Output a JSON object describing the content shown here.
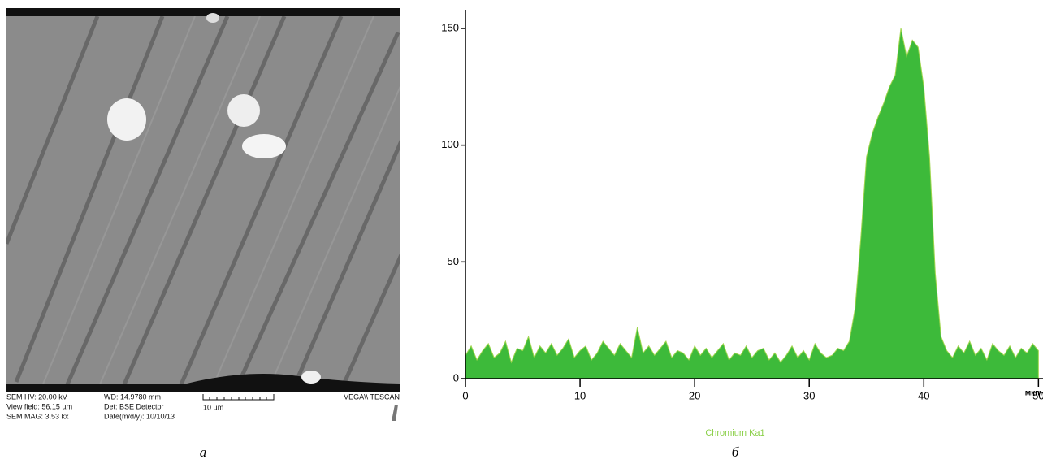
{
  "sem_image": {
    "hv": "SEM HV: 20.00 kV",
    "view_field": "View field: 56.15 µm",
    "mag": "SEM MAG: 3.53 kx",
    "wd": "WD: 14.9780 mm",
    "detector": "Det: BSE Detector",
    "date": "Date(m/d/y): 10/10/13",
    "scale_bar": "10 µm",
    "brand": "VEGA\\\\ TESCAN"
  },
  "captions": [
    "а",
    "б"
  ],
  "chart_data": {
    "type": "area",
    "x_unit_label": "мкm",
    "x": [
      0,
      0.5,
      1,
      1.5,
      2,
      2.5,
      3,
      3.5,
      4,
      4.5,
      5,
      5.5,
      6,
      6.5,
      7,
      7.5,
      8,
      8.5,
      9,
      9.5,
      10,
      10.5,
      11,
      11.5,
      12,
      12.5,
      13,
      13.5,
      14,
      14.5,
      15,
      15.5,
      16,
      16.5,
      17,
      17.5,
      18,
      18.5,
      19,
      19.5,
      20,
      20.5,
      21,
      21.5,
      22,
      22.5,
      23,
      23.5,
      24,
      24.5,
      25,
      25.5,
      26,
      26.5,
      27,
      27.5,
      28,
      28.5,
      29,
      29.5,
      30,
      30.5,
      31,
      31.5,
      32,
      32.5,
      33,
      33.5,
      34,
      34.5,
      35,
      35.5,
      36,
      36.5,
      37,
      37.5,
      38,
      38.5,
      39,
      39.5,
      40,
      40.5,
      41,
      41.5,
      42,
      42.5,
      43,
      43.5,
      44,
      44.5,
      45,
      45.5,
      46,
      46.5,
      47,
      47.5,
      48,
      48.5,
      49,
      49.5,
      50
    ],
    "series": [
      {
        "name": "Chromium Ka1",
        "color": "#3dba3a",
        "values": [
          10,
          14,
          8,
          12,
          15,
          9,
          11,
          16,
          7,
          13,
          12,
          18,
          9,
          14,
          11,
          15,
          10,
          13,
          17,
          9,
          12,
          14,
          8,
          11,
          16,
          13,
          10,
          15,
          12,
          9,
          22,
          11,
          14,
          10,
          13,
          16,
          9,
          12,
          11,
          8,
          14,
          10,
          13,
          9,
          12,
          15,
          8,
          11,
          10,
          14,
          9,
          12,
          13,
          8,
          11,
          7,
          10,
          14,
          9,
          12,
          8,
          15,
          11,
          9,
          10,
          13,
          12,
          16,
          30,
          60,
          95,
          105,
          112,
          118,
          125,
          130,
          150,
          138,
          145,
          142,
          125,
          95,
          45,
          18,
          12,
          9,
          14,
          11,
          16,
          10,
          13,
          8,
          15,
          12,
          10,
          14,
          9,
          13,
          11,
          15,
          12
        ]
      }
    ],
    "xlim": [
      0,
      50.4
    ],
    "ylim": [
      0,
      158
    ],
    "xticks": [
      0,
      10,
      20,
      30,
      40,
      50
    ],
    "yticks": [
      0,
      50,
      100,
      150
    ]
  }
}
